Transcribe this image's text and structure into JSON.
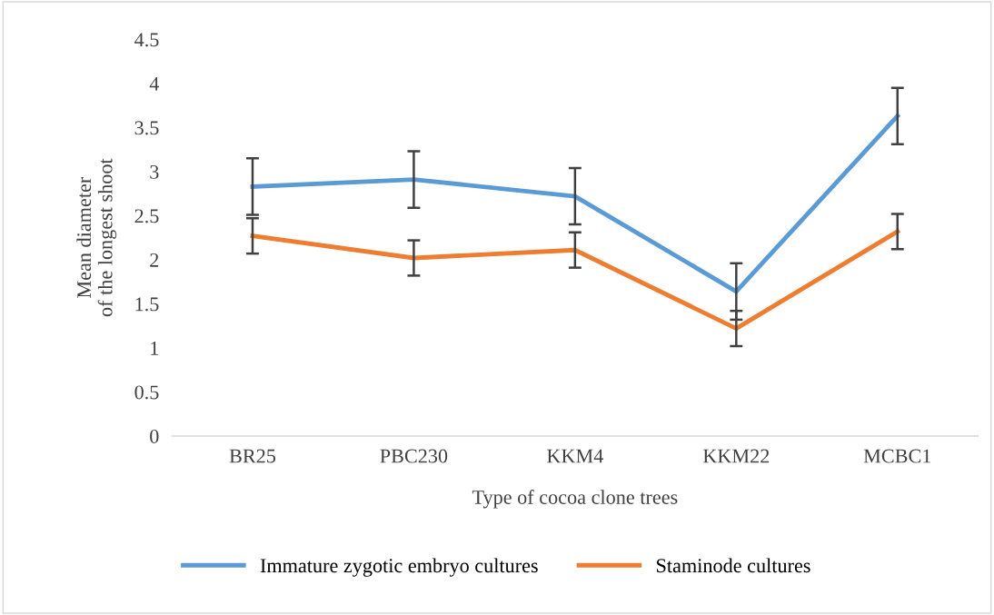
{
  "chart_data": {
    "type": "line",
    "xlabel": "Type of cocoa clone trees",
    "ylabel": "Mean diameter\nof the longest shoot",
    "categories": [
      "BR25",
      "PBC230",
      "KKM4",
      "KKM22",
      "MCBC1"
    ],
    "series": [
      {
        "name": "Immature zygotic embryo cultures",
        "color": "#5b9bd5",
        "values": [
          2.83,
          2.91,
          2.72,
          1.64,
          3.63
        ],
        "errors": [
          0.32,
          0.32,
          0.32,
          0.32,
          0.32
        ]
      },
      {
        "name": "Staminode cultures",
        "color": "#ed7d31",
        "values": [
          2.27,
          2.02,
          2.11,
          1.22,
          2.32
        ],
        "errors": [
          0.2,
          0.2,
          0.2,
          0.2,
          0.2
        ]
      }
    ],
    "ylim": [
      0,
      4.5
    ],
    "yticks": [
      0,
      0.5,
      1,
      1.5,
      2,
      2.5,
      3,
      3.5,
      4,
      4.5
    ],
    "grid": false,
    "legend": "bottom",
    "marker": "none",
    "line_style": "solid"
  }
}
